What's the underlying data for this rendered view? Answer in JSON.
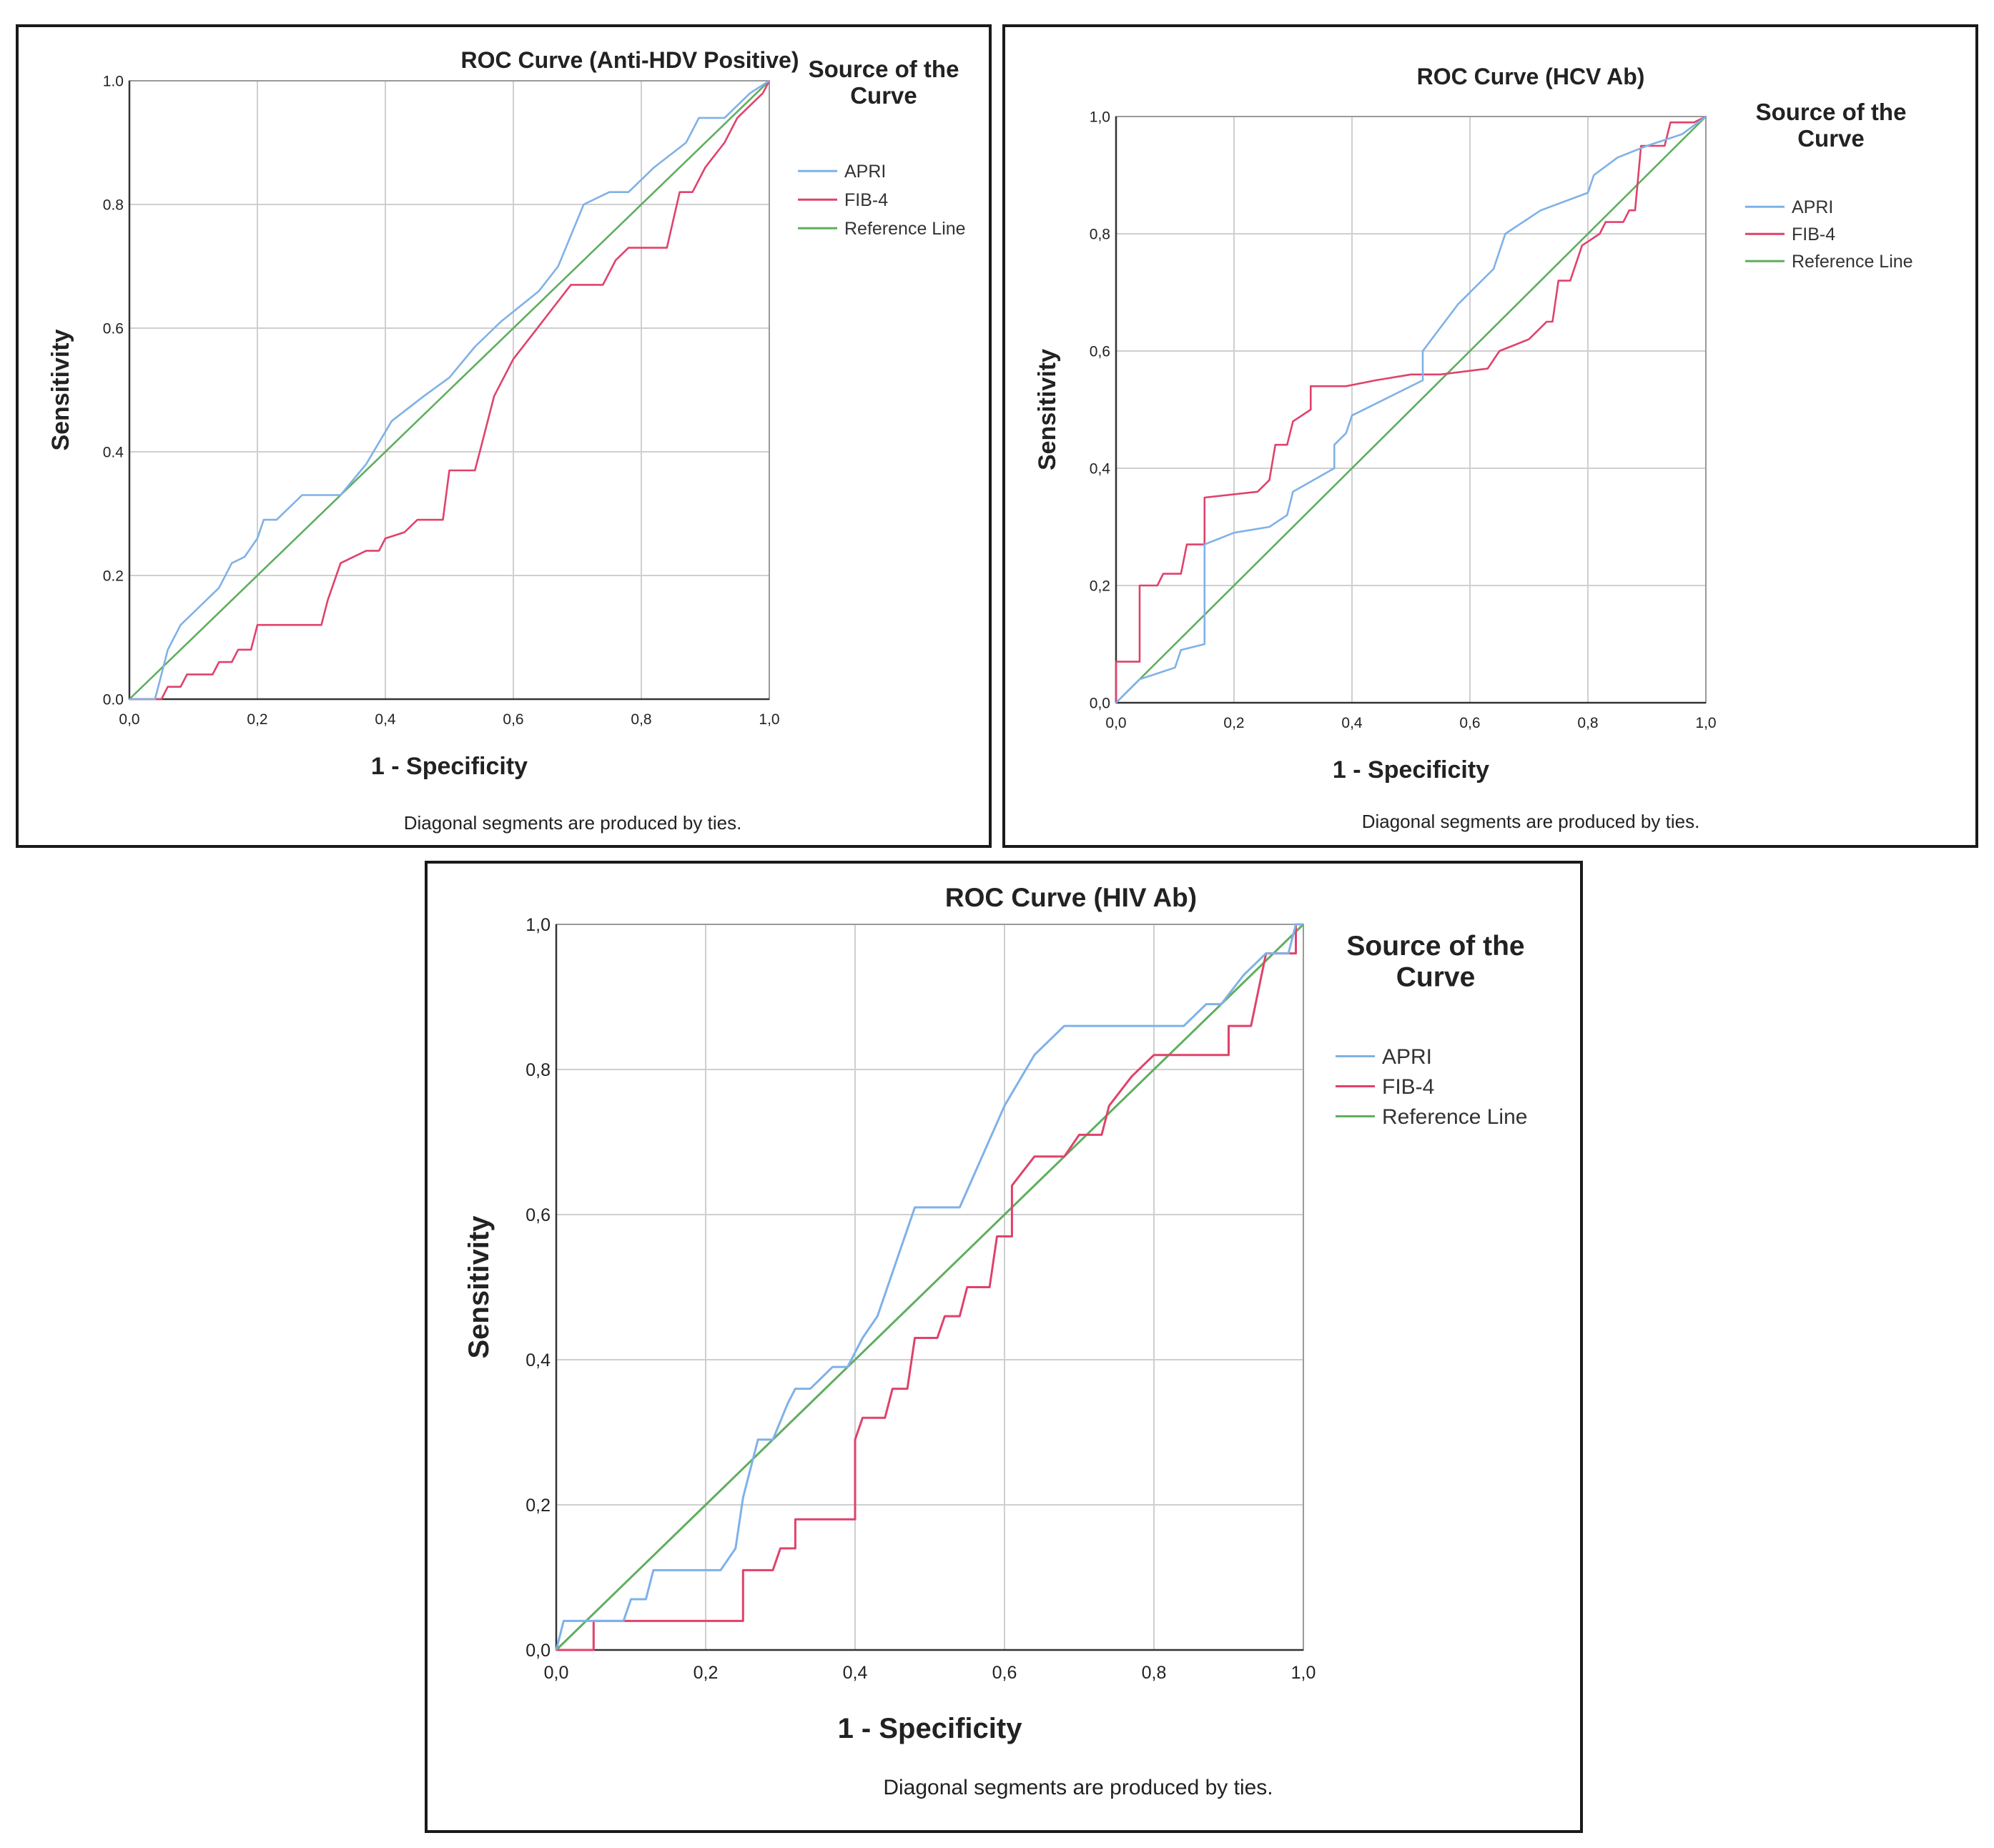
{
  "colors": {
    "apri": "#7fb1e8",
    "fib4": "#e0426a",
    "reference": "#5fae5f",
    "grid": "#cfcfcf",
    "axis": "#333333",
    "frame": "#1a1a1a"
  },
  "chart_data": [
    {
      "type": "line",
      "title": "ROC Curve (Anti-HDV Positive)",
      "xlabel": "1 - Specificity",
      "ylabel": "Sensitivity",
      "xlim": [
        0,
        1
      ],
      "ylim": [
        0,
        1
      ],
      "xticks": [
        "0,0",
        "0,2",
        "0,4",
        "0,6",
        "0,8",
        "1,0"
      ],
      "yticks": [
        "0.0",
        "0.2",
        "0.4",
        "0.6",
        "0.8",
        "1.0"
      ],
      "legend_title": "Source of the Curve",
      "legend_position": "right",
      "footnote": "Diagonal segments are produced by ties.",
      "series": [
        {
          "name": "APRI",
          "color": "#7fb1e8",
          "points": [
            [
              0,
              0
            ],
            [
              0.04,
              0
            ],
            [
              0.05,
              0.04
            ],
            [
              0.06,
              0.08
            ],
            [
              0.08,
              0.12
            ],
            [
              0.1,
              0.14
            ],
            [
              0.12,
              0.16
            ],
            [
              0.14,
              0.18
            ],
            [
              0.16,
              0.22
            ],
            [
              0.18,
              0.23
            ],
            [
              0.2,
              0.26
            ],
            [
              0.21,
              0.29
            ],
            [
              0.23,
              0.29
            ],
            [
              0.27,
              0.33
            ],
            [
              0.33,
              0.33
            ],
            [
              0.37,
              0.38
            ],
            [
              0.41,
              0.45
            ],
            [
              0.46,
              0.49
            ],
            [
              0.5,
              0.52
            ],
            [
              0.54,
              0.57
            ],
            [
              0.58,
              0.61
            ],
            [
              0.64,
              0.66
            ],
            [
              0.67,
              0.7
            ],
            [
              0.71,
              0.8
            ],
            [
              0.75,
              0.82
            ],
            [
              0.78,
              0.82
            ],
            [
              0.82,
              0.86
            ],
            [
              0.87,
              0.9
            ],
            [
              0.89,
              0.94
            ],
            [
              0.93,
              0.94
            ],
            [
              0.97,
              0.98
            ],
            [
              1,
              1
            ]
          ]
        },
        {
          "name": "FIB-4",
          "color": "#e0426a",
          "points": [
            [
              0,
              0
            ],
            [
              0.05,
              0
            ],
            [
              0.06,
              0.02
            ],
            [
              0.08,
              0.02
            ],
            [
              0.09,
              0.04
            ],
            [
              0.13,
              0.04
            ],
            [
              0.14,
              0.06
            ],
            [
              0.16,
              0.06
            ],
            [
              0.17,
              0.08
            ],
            [
              0.19,
              0.08
            ],
            [
              0.2,
              0.12
            ],
            [
              0.3,
              0.12
            ],
            [
              0.31,
              0.16
            ],
            [
              0.33,
              0.22
            ],
            [
              0.37,
              0.24
            ],
            [
              0.39,
              0.24
            ],
            [
              0.4,
              0.26
            ],
            [
              0.43,
              0.27
            ],
            [
              0.45,
              0.29
            ],
            [
              0.49,
              0.29
            ],
            [
              0.5,
              0.37
            ],
            [
              0.54,
              0.37
            ],
            [
              0.55,
              0.41
            ],
            [
              0.57,
              0.49
            ],
            [
              0.6,
              0.55
            ],
            [
              0.63,
              0.59
            ],
            [
              0.66,
              0.63
            ],
            [
              0.69,
              0.67
            ],
            [
              0.74,
              0.67
            ],
            [
              0.76,
              0.71
            ],
            [
              0.78,
              0.73
            ],
            [
              0.84,
              0.73
            ],
            [
              0.86,
              0.82
            ],
            [
              0.88,
              0.82
            ],
            [
              0.9,
              0.86
            ],
            [
              0.93,
              0.9
            ],
            [
              0.95,
              0.94
            ],
            [
              0.97,
              0.96
            ],
            [
              0.99,
              0.98
            ],
            [
              1,
              1
            ]
          ]
        },
        {
          "name": "Reference Line",
          "color": "#5fae5f",
          "points": [
            [
              0,
              0
            ],
            [
              1,
              1
            ]
          ]
        }
      ]
    },
    {
      "type": "line",
      "title": "ROC Curve (HCV Ab)",
      "xlabel": "1 - Specificity",
      "ylabel": "Sensitivity",
      "xlim": [
        0,
        1
      ],
      "ylim": [
        0,
        1
      ],
      "xticks": [
        "0,0",
        "0,2",
        "0,4",
        "0,6",
        "0,8",
        "1,0"
      ],
      "yticks": [
        "0,0",
        "0,2",
        "0,4",
        "0,6",
        "0,8",
        "1,0"
      ],
      "legend_title": "Source of the Curve",
      "legend_position": "right",
      "footnote": "Diagonal segments are produced by ties.",
      "series": [
        {
          "name": "APRI",
          "color": "#7fb1e8",
          "points": [
            [
              0,
              0
            ],
            [
              0.02,
              0.02
            ],
            [
              0.04,
              0.04
            ],
            [
              0.07,
              0.05
            ],
            [
              0.1,
              0.06
            ],
            [
              0.11,
              0.09
            ],
            [
              0.15,
              0.1
            ],
            [
              0.15,
              0.27
            ],
            [
              0.2,
              0.29
            ],
            [
              0.26,
              0.3
            ],
            [
              0.29,
              0.32
            ],
            [
              0.3,
              0.36
            ],
            [
              0.37,
              0.4
            ],
            [
              0.37,
              0.44
            ],
            [
              0.39,
              0.46
            ],
            [
              0.4,
              0.49
            ],
            [
              0.44,
              0.51
            ],
            [
              0.52,
              0.55
            ],
            [
              0.52,
              0.6
            ],
            [
              0.58,
              0.68
            ],
            [
              0.64,
              0.74
            ],
            [
              0.66,
              0.8
            ],
            [
              0.72,
              0.84
            ],
            [
              0.8,
              0.87
            ],
            [
              0.81,
              0.9
            ],
            [
              0.85,
              0.93
            ],
            [
              0.9,
              0.95
            ],
            [
              0.96,
              0.97
            ],
            [
              1,
              1
            ]
          ]
        },
        {
          "name": "FIB-4",
          "color": "#e0426a",
          "points": [
            [
              0,
              0
            ],
            [
              0,
              0.07
            ],
            [
              0.04,
              0.07
            ],
            [
              0.04,
              0.2
            ],
            [
              0.07,
              0.2
            ],
            [
              0.08,
              0.22
            ],
            [
              0.11,
              0.22
            ],
            [
              0.12,
              0.27
            ],
            [
              0.15,
              0.27
            ],
            [
              0.15,
              0.35
            ],
            [
              0.24,
              0.36
            ],
            [
              0.26,
              0.38
            ],
            [
              0.27,
              0.44
            ],
            [
              0.29,
              0.44
            ],
            [
              0.3,
              0.48
            ],
            [
              0.33,
              0.5
            ],
            [
              0.33,
              0.54
            ],
            [
              0.39,
              0.54
            ],
            [
              0.44,
              0.55
            ],
            [
              0.5,
              0.56
            ],
            [
              0.55,
              0.56
            ],
            [
              0.63,
              0.57
            ],
            [
              0.65,
              0.6
            ],
            [
              0.7,
              0.62
            ],
            [
              0.73,
              0.65
            ],
            [
              0.74,
              0.65
            ],
            [
              0.75,
              0.72
            ],
            [
              0.77,
              0.72
            ],
            [
              0.79,
              0.78
            ],
            [
              0.82,
              0.8
            ],
            [
              0.83,
              0.82
            ],
            [
              0.86,
              0.82
            ],
            [
              0.87,
              0.84
            ],
            [
              0.88,
              0.84
            ],
            [
              0.89,
              0.95
            ],
            [
              0.93,
              0.95
            ],
            [
              0.94,
              0.99
            ],
            [
              0.98,
              0.99
            ],
            [
              1,
              1
            ]
          ]
        },
        {
          "name": "Reference Line",
          "color": "#5fae5f",
          "points": [
            [
              0,
              0
            ],
            [
              1,
              1
            ]
          ]
        }
      ]
    },
    {
      "type": "line",
      "title": "ROC Curve (HIV Ab)",
      "xlabel": "1 - Specificity",
      "ylabel": "Sensitivity",
      "xlim": [
        0,
        1
      ],
      "ylim": [
        0,
        1
      ],
      "xticks": [
        "0,0",
        "0,2",
        "0,4",
        "0,6",
        "0,8",
        "1,0"
      ],
      "yticks": [
        "0,0",
        "0,2",
        "0,4",
        "0,6",
        "0,8",
        "1,0"
      ],
      "legend_title": "Source of the Curve",
      "legend_position": "right",
      "footnote": "Diagonal segments are produced by ties.",
      "series": [
        {
          "name": "APRI",
          "color": "#7fb1e8",
          "points": [
            [
              0,
              0
            ],
            [
              0.01,
              0.04
            ],
            [
              0.09,
              0.04
            ],
            [
              0.1,
              0.07
            ],
            [
              0.12,
              0.07
            ],
            [
              0.13,
              0.11
            ],
            [
              0.22,
              0.11
            ],
            [
              0.24,
              0.14
            ],
            [
              0.25,
              0.21
            ],
            [
              0.27,
              0.29
            ],
            [
              0.29,
              0.29
            ],
            [
              0.31,
              0.34
            ],
            [
              0.32,
              0.36
            ],
            [
              0.34,
              0.36
            ],
            [
              0.37,
              0.39
            ],
            [
              0.39,
              0.39
            ],
            [
              0.41,
              0.43
            ],
            [
              0.43,
              0.46
            ],
            [
              0.48,
              0.61
            ],
            [
              0.54,
              0.61
            ],
            [
              0.6,
              0.75
            ],
            [
              0.64,
              0.82
            ],
            [
              0.68,
              0.86
            ],
            [
              0.84,
              0.86
            ],
            [
              0.87,
              0.89
            ],
            [
              0.89,
              0.89
            ],
            [
              0.92,
              0.93
            ],
            [
              0.95,
              0.96
            ],
            [
              0.98,
              0.96
            ],
            [
              0.99,
              1
            ],
            [
              1,
              1
            ]
          ]
        },
        {
          "name": "FIB-4",
          "color": "#e0426a",
          "points": [
            [
              0,
              0
            ],
            [
              0.05,
              0
            ],
            [
              0.05,
              0.04
            ],
            [
              0.25,
              0.04
            ],
            [
              0.25,
              0.11
            ],
            [
              0.29,
              0.11
            ],
            [
              0.3,
              0.14
            ],
            [
              0.32,
              0.14
            ],
            [
              0.32,
              0.18
            ],
            [
              0.4,
              0.18
            ],
            [
              0.4,
              0.29
            ],
            [
              0.41,
              0.32
            ],
            [
              0.44,
              0.32
            ],
            [
              0.45,
              0.36
            ],
            [
              0.47,
              0.36
            ],
            [
              0.48,
              0.43
            ],
            [
              0.51,
              0.43
            ],
            [
              0.52,
              0.46
            ],
            [
              0.54,
              0.46
            ],
            [
              0.55,
              0.5
            ],
            [
              0.58,
              0.5
            ],
            [
              0.59,
              0.57
            ],
            [
              0.61,
              0.57
            ],
            [
              0.61,
              0.64
            ],
            [
              0.64,
              0.68
            ],
            [
              0.68,
              0.68
            ],
            [
              0.7,
              0.71
            ],
            [
              0.73,
              0.71
            ],
            [
              0.74,
              0.75
            ],
            [
              0.77,
              0.79
            ],
            [
              0.8,
              0.82
            ],
            [
              0.9,
              0.82
            ],
            [
              0.9,
              0.86
            ],
            [
              0.93,
              0.86
            ],
            [
              0.95,
              0.96
            ],
            [
              0.99,
              0.96
            ],
            [
              0.99,
              1
            ],
            [
              1,
              1
            ]
          ]
        },
        {
          "name": "Reference Line",
          "color": "#5fae5f",
          "points": [
            [
              0,
              0
            ],
            [
              1,
              1
            ]
          ]
        }
      ]
    }
  ]
}
